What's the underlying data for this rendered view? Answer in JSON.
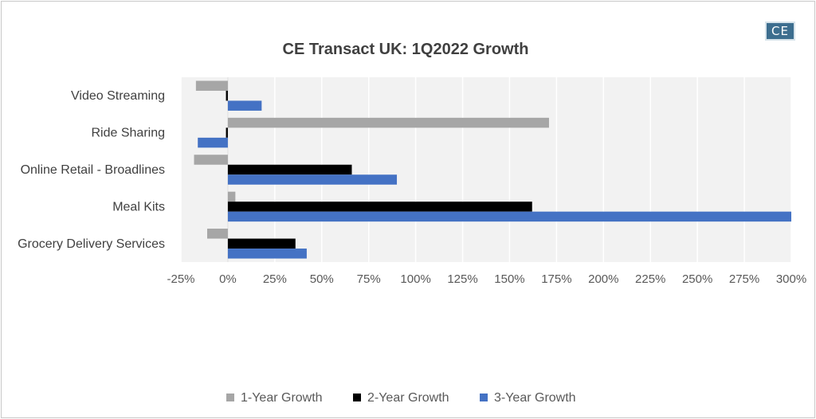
{
  "chart_data": {
    "type": "bar",
    "orientation": "horizontal",
    "title": "CE Transact UK: 1Q2022 Growth",
    "categories": [
      "Video Streaming",
      "Ride Sharing",
      "Online Retail - Broadlines",
      "Meal Kits",
      "Grocery Delivery Services"
    ],
    "series": [
      {
        "name": "1-Year Growth",
        "color": "#a6a6a6",
        "values": [
          -17,
          171,
          -18,
          4,
          -11
        ]
      },
      {
        "name": "2-Year Growth",
        "color": "#000000",
        "values": [
          -1,
          -1,
          66,
          162,
          36
        ]
      },
      {
        "name": "3-Year Growth",
        "color": "#4472c4",
        "values": [
          18,
          -16,
          90,
          300,
          42
        ]
      }
    ],
    "xlim": [
      -25,
      300
    ],
    "xticks": [
      -25,
      0,
      25,
      50,
      75,
      100,
      125,
      150,
      175,
      200,
      225,
      250,
      275,
      300
    ],
    "xtick_labels": [
      "-25%",
      "0%",
      "25%",
      "50%",
      "75%",
      "100%",
      "125%",
      "150%",
      "175%",
      "200%",
      "225%",
      "250%",
      "275%",
      "300%"
    ],
    "grid": true,
    "legend_position": "bottom",
    "plot_background": "#f2f2f2"
  },
  "logo": {
    "text": "CE",
    "color": "#3d6e8f"
  }
}
